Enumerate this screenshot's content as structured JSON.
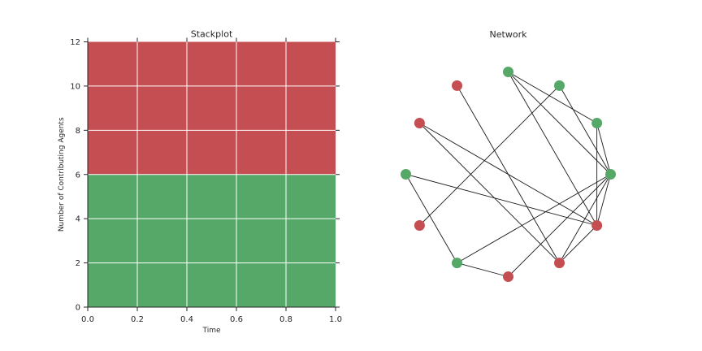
{
  "chart_data": [
    {
      "type": "area",
      "title": "Stackplot",
      "xlabel": "Time",
      "ylabel": "Number of Contributing Agents",
      "xlim": [
        0.0,
        1.0
      ],
      "ylim": [
        0,
        12
      ],
      "xticks": [
        "0.0",
        "0.2",
        "0.4",
        "0.6",
        "0.8",
        "1.0"
      ],
      "yticks": [
        "0",
        "2",
        "4",
        "6",
        "8",
        "10",
        "12"
      ],
      "grid": true,
      "x": [
        0.0,
        1.0
      ],
      "series": [
        {
          "color": "#55a868",
          "values": [
            6,
            6
          ]
        },
        {
          "color": "#c44e52",
          "values": [
            6,
            6
          ]
        }
      ]
    },
    {
      "type": "network",
      "title": "Network",
      "layout": "circular",
      "nodes": [
        {
          "id": 0,
          "color": "#55a868"
        },
        {
          "id": 1,
          "color": "#55a868"
        },
        {
          "id": 2,
          "color": "#55a868"
        },
        {
          "id": 3,
          "color": "#55a868"
        },
        {
          "id": 4,
          "color": "#c44e52"
        },
        {
          "id": 5,
          "color": "#c44e52"
        },
        {
          "id": 6,
          "color": "#55a868"
        },
        {
          "id": 7,
          "color": "#c44e52"
        },
        {
          "id": 8,
          "color": "#55a868"
        },
        {
          "id": 9,
          "color": "#c44e52"
        },
        {
          "id": 10,
          "color": "#c44e52"
        },
        {
          "id": 11,
          "color": "#c44e52"
        }
      ],
      "edges": [
        [
          0,
          1
        ],
        [
          0,
          2
        ],
        [
          0,
          3
        ],
        [
          0,
          8
        ],
        [
          0,
          9
        ],
        [
          0,
          10
        ],
        [
          0,
          11
        ],
        [
          11,
          1
        ],
        [
          11,
          3
        ],
        [
          11,
          5
        ],
        [
          11,
          6
        ],
        [
          11,
          10
        ],
        [
          10,
          4
        ],
        [
          10,
          5
        ],
        [
          9,
          8
        ],
        [
          8,
          6
        ],
        [
          7,
          2
        ],
        [
          3,
          1
        ]
      ]
    }
  ]
}
